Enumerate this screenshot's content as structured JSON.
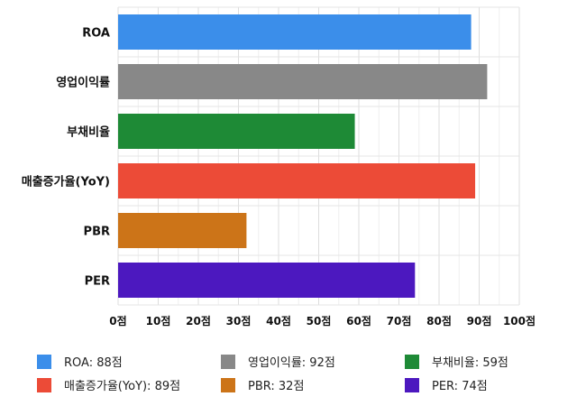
{
  "chart_data": {
    "type": "bar",
    "orientation": "horizontal",
    "categories": [
      "ROA",
      "영업이익률",
      "부채비율",
      "매출증가율(YoY)",
      "PBR",
      "PER"
    ],
    "values": [
      88,
      92,
      59,
      89,
      32,
      74
    ],
    "colors": [
      "#3b8eea",
      "#888888",
      "#1e8a36",
      "#ec4b37",
      "#cc7418",
      "#4c18bf"
    ],
    "xlim": [
      0,
      100
    ],
    "x_ticks": [
      0,
      10,
      20,
      30,
      40,
      50,
      60,
      70,
      80,
      90,
      100
    ],
    "tick_suffix": "점",
    "grid": true,
    "legend_position": "bottom",
    "legend": [
      "ROA: 88점",
      "영업이익률: 92점",
      "부채비율: 59점",
      "매출증가율(YoY): 89점",
      "PBR: 32점",
      "PER: 74점"
    ]
  }
}
